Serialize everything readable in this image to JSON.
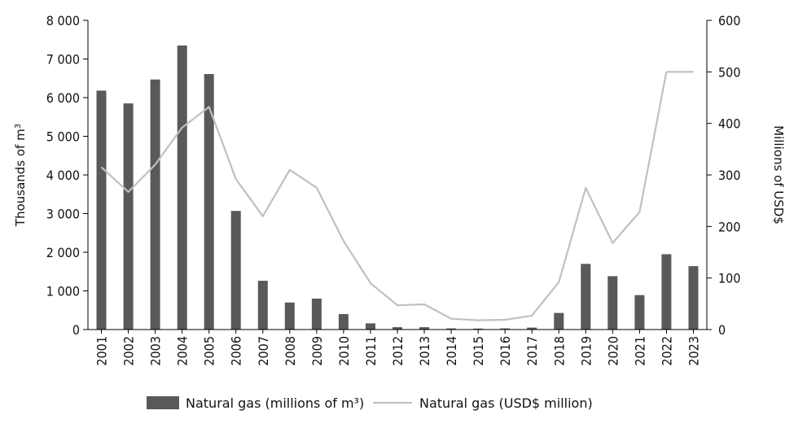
{
  "chart_data": {
    "type": "bar",
    "title": "",
    "categories": [
      "2001",
      "2002",
      "2003",
      "2004",
      "2005",
      "2006",
      "2007",
      "2008",
      "2009",
      "2010",
      "2011",
      "2012",
      "2013",
      "2014",
      "2015",
      "2016",
      "2017",
      "2018",
      "2019",
      "2020",
      "2021",
      "2022",
      "2023"
    ],
    "series": [
      {
        "name": "Natural gas (millions of m³)",
        "type": "bar",
        "axis": "left",
        "color": "#595959",
        "values": [
          6180,
          5850,
          6470,
          7350,
          6610,
          3070,
          1260,
          700,
          800,
          400,
          160,
          60,
          60,
          30,
          25,
          30,
          50,
          430,
          1700,
          1380,
          890,
          1950,
          1640
        ]
      },
      {
        "name": "Natural gas (USD$ million)",
        "type": "line",
        "axis": "right",
        "color": "#c0c0c0",
        "values": [
          315,
          267,
          320,
          392,
          432,
          292,
          220,
          310,
          275,
          172,
          90,
          47,
          49,
          21,
          18,
          19,
          27,
          92,
          275,
          168,
          228,
          500,
          500
        ]
      }
    ],
    "y_left": {
      "label_main": "Thousands of m",
      "label_sup": "3",
      "range": [
        0,
        8000
      ],
      "ticks": [
        "0",
        "1 000",
        "2 000",
        "3 000",
        "4 000",
        "5 000",
        "6 000",
        "7 000",
        "8 000"
      ]
    },
    "y_right": {
      "label": "Millions of  USD$",
      "range": [
        0,
        600
      ],
      "ticks": [
        "0",
        "100",
        "200",
        "300",
        "400",
        "500",
        "600"
      ]
    },
    "grid": false,
    "legend_position": "bottom"
  }
}
